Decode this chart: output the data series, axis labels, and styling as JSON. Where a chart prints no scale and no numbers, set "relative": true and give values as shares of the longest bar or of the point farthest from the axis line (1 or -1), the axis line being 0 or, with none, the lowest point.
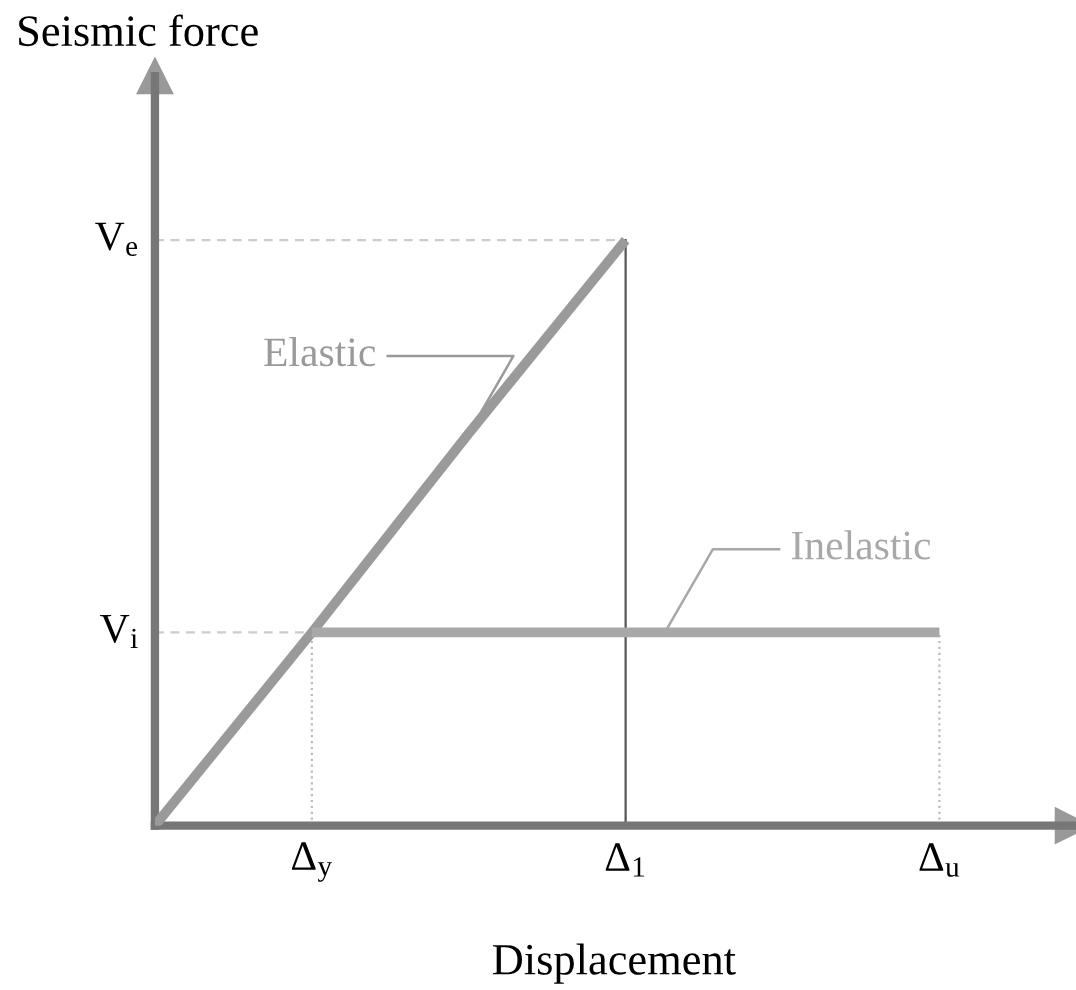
{
  "chart_data": {
    "type": "line",
    "relative": true,
    "ylabel": "Seismic force",
    "xlabel": "Displacement",
    "categories": [
      null,
      "Δ$_{y}$",
      null,
      "Δ$_{1}$",
      null,
      "Δ$_{u}$"
    ],
    "series": [
      {
        "name": "Elastic",
        "color": "#9a9a9a",
        "values": [
          0,
          0.33,
          0.67,
          1,
          null,
          null
        ]
      },
      {
        "name": "Inelastic",
        "color": "#a8a8a8",
        "values": [
          null,
          0.33,
          0.33,
          0.33,
          0.33,
          0.33
        ]
      }
    ],
    "ref_lines": [
      {
        "axis": "y",
        "value": 1,
        "label": "V$_{e}$",
        "line_style": "dashed",
        "color": "#cccccc"
      },
      {
        "axis": "y",
        "value": 0.33,
        "label": "V$_{i}$",
        "line_style": "dashed",
        "color": "#cccccc"
      },
      {
        "axis": "x",
        "value": "Δ$_{y}$",
        "line_style": "dotted",
        "color": "#bbbbbb"
      },
      {
        "axis": "x",
        "value": "Δ$_{1}$",
        "line_style": "solid",
        "color": "#555555"
      },
      {
        "axis": "x",
        "value": "Δ$_{u}$",
        "line_style": "dotted",
        "color": "#bbbbbb"
      }
    ],
    "legend": false,
    "marker": "none",
    "line_style": "solid"
  }
}
